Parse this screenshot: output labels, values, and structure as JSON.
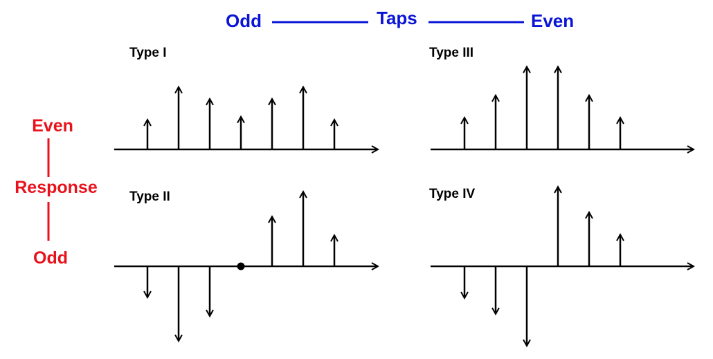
{
  "header": {
    "odd_label": "Odd",
    "taps_label": "Taps",
    "even_label": "Even",
    "color": "#0a14d6"
  },
  "side": {
    "even_label": "Even",
    "response_label": "Response",
    "odd_label": "Odd",
    "color": "#e8121c"
  },
  "panels": [
    {
      "id": "type-1",
      "title": "Type I",
      "taps": [
        1,
        2.1,
        1.7,
        1.1,
        1.7,
        2.1,
        1
      ],
      "center_marker": false
    },
    {
      "id": "type-3",
      "title": "Type III",
      "taps": [
        1,
        1.7,
        2.6,
        2.6,
        1.7,
        1
      ],
      "center_marker": false
    },
    {
      "id": "type-2",
      "title": "Type II",
      "taps": [
        -1,
        -2.4,
        -1.6,
        0,
        1.6,
        2.4,
        1
      ],
      "center_marker": true
    },
    {
      "id": "type-4",
      "title": "Type IV",
      "taps": [
        -1,
        -1.5,
        -2.5,
        2.5,
        1.7,
        1
      ],
      "center_marker": false
    }
  ]
}
